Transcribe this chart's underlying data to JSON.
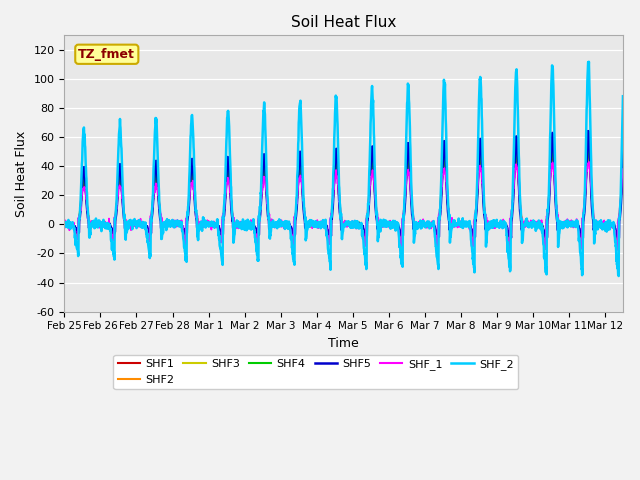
{
  "title": "Soil Heat Flux",
  "xlabel": "Time",
  "ylabel": "Soil Heat Flux",
  "ylim": [
    -60,
    130
  ],
  "yticks": [
    -60,
    -40,
    -20,
    0,
    20,
    40,
    60,
    80,
    100,
    120
  ],
  "annotation_text": "TZ_fmet",
  "annotation_color": "#8B0000",
  "annotation_bg": "#FFFF99",
  "annotation_border": "#CCAA00",
  "bg_color": "#E8E8E8",
  "plot_bg": "#E8E8E8",
  "series": [
    "SHF1",
    "SHF2",
    "SHF3",
    "SHF4",
    "SHF5",
    "SHF_1",
    "SHF_2"
  ],
  "colors": [
    "#CC0000",
    "#FF8C00",
    "#CCCC00",
    "#00CC00",
    "#0000CC",
    "#FF00FF",
    "#00CCFF"
  ],
  "linewidths": [
    1.2,
    1.2,
    1.2,
    1.2,
    1.8,
    1.2,
    1.8
  ],
  "date_labels": [
    "Feb 25",
    "Feb 26",
    "Feb 27",
    "Feb 28",
    "Mar 1",
    "Mar 2",
    "Mar 3",
    "Mar 4",
    "Mar 5",
    "Mar 6",
    "Mar 7",
    "Mar 8",
    "Mar 9",
    "Mar 10",
    "Mar 11",
    "Mar 12"
  ],
  "n_days": 15.5,
  "points_per_day": 144
}
